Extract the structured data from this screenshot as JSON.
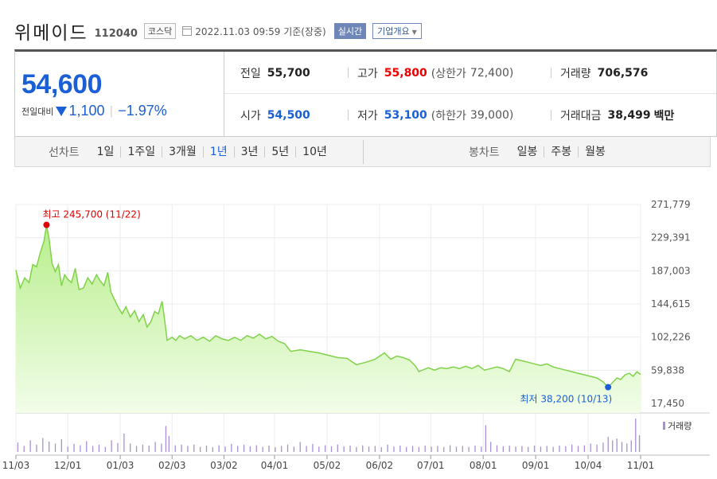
{
  "header": {
    "company_name": "위메이드",
    "stock_code": "112040",
    "market": "코스닥",
    "timestamp": "2022.11.03 09:59  기준(장중)",
    "realtime_label": "실시간",
    "overview_label": "기업개요"
  },
  "quote": {
    "current_price": "54,600",
    "change_label": "전일대비",
    "change_amount": "1,100",
    "change_percent": "−1.97%",
    "direction": "down",
    "prev_close_label": "전일",
    "prev_close": "55,700",
    "high_label": "고가",
    "high": "55,800",
    "upper_limit_label": "(상한가",
    "upper_limit": "72,400)",
    "volume_label": "거래량",
    "volume": "706,576",
    "open_label": "시가",
    "open": "54,500",
    "low_label": "저가",
    "low": "53,100",
    "lower_limit_label": "(하한가",
    "lower_limit": "39,000)",
    "amount_label": "거래대금",
    "amount": "38,499",
    "amount_unit": "백만"
  },
  "tabs": {
    "line_title": "선차트",
    "line": [
      "1일",
      "1주일",
      "3개월",
      "1년",
      "3년",
      "5년",
      "10년"
    ],
    "line_active": 3,
    "candle_title": "봉차트",
    "candle": [
      "일봉",
      "주봉",
      "월봉"
    ]
  },
  "colors": {
    "price_up": "#e00000",
    "price_down": "#1a5fd6",
    "line": "#7fd24a",
    "area_top": "#b8ee8c",
    "area_bottom": "#f2fde9",
    "volume": "#a98fd8"
  },
  "chart_data": {
    "type": "area",
    "ylim": [
      17450,
      271779
    ],
    "yticks": [
      "271,779",
      "229,391",
      "187,003",
      "144,615",
      "102,226",
      "59,838",
      "17,450"
    ],
    "x_labels": [
      "11/03",
      "12/01",
      "01/03",
      "02/03",
      "03/02",
      "04/01",
      "05/02",
      "06/02",
      "07/01",
      "08/01",
      "09/01",
      "10/04",
      "11/01"
    ],
    "x_label_positions": [
      0,
      0.083,
      0.167,
      0.25,
      0.333,
      0.414,
      0.498,
      0.582,
      0.664,
      0.748,
      0.832,
      0.916,
      1.0
    ],
    "high_annotation": {
      "label": "최고",
      "value": "245,700",
      "date": "(11/22)",
      "price": 245700,
      "t": 0.049
    },
    "low_annotation": {
      "label": "최저",
      "value": "38,200",
      "date": "(10/13)",
      "price": 38200,
      "t": 0.948
    },
    "volume_label": "거래량",
    "price_series": [
      [
        0.0,
        188000
      ],
      [
        0.007,
        165000
      ],
      [
        0.014,
        178000
      ],
      [
        0.021,
        172000
      ],
      [
        0.027,
        195000
      ],
      [
        0.033,
        192000
      ],
      [
        0.039,
        210000
      ],
      [
        0.045,
        225000
      ],
      [
        0.049,
        245700
      ],
      [
        0.053,
        228000
      ],
      [
        0.058,
        196000
      ],
      [
        0.063,
        186000
      ],
      [
        0.068,
        195000
      ],
      [
        0.073,
        168000
      ],
      [
        0.078,
        182000
      ],
      [
        0.083,
        176000
      ],
      [
        0.089,
        172000
      ],
      [
        0.095,
        190000
      ],
      [
        0.101,
        163000
      ],
      [
        0.108,
        165000
      ],
      [
        0.115,
        178000
      ],
      [
        0.122,
        170000
      ],
      [
        0.129,
        182000
      ],
      [
        0.135,
        174000
      ],
      [
        0.141,
        168000
      ],
      [
        0.147,
        185000
      ],
      [
        0.152,
        160000
      ],
      [
        0.158,
        150000
      ],
      [
        0.164,
        140000
      ],
      [
        0.17,
        132000
      ],
      [
        0.176,
        141000
      ],
      [
        0.183,
        128000
      ],
      [
        0.19,
        136000
      ],
      [
        0.197,
        122000
      ],
      [
        0.204,
        131000
      ],
      [
        0.21,
        115000
      ],
      [
        0.216,
        122000
      ],
      [
        0.222,
        135000
      ],
      [
        0.228,
        132000
      ],
      [
        0.234,
        148000
      ],
      [
        0.238,
        125000
      ],
      [
        0.242,
        98000
      ],
      [
        0.25,
        102000
      ],
      [
        0.256,
        98000
      ],
      [
        0.262,
        104000
      ],
      [
        0.27,
        100000
      ],
      [
        0.28,
        104000
      ],
      [
        0.29,
        98000
      ],
      [
        0.3,
        102000
      ],
      [
        0.31,
        97000
      ],
      [
        0.32,
        104000
      ],
      [
        0.33,
        100000
      ],
      [
        0.34,
        98000
      ],
      [
        0.35,
        102000
      ],
      [
        0.36,
        98000
      ],
      [
        0.37,
        104000
      ],
      [
        0.38,
        101000
      ],
      [
        0.39,
        106000
      ],
      [
        0.4,
        100000
      ],
      [
        0.41,
        103000
      ],
      [
        0.42,
        97000
      ],
      [
        0.43,
        94000
      ],
      [
        0.44,
        84000
      ],
      [
        0.455,
        86000
      ],
      [
        0.47,
        84000
      ],
      [
        0.485,
        82000
      ],
      [
        0.5,
        79000
      ],
      [
        0.515,
        76000
      ],
      [
        0.53,
        75000
      ],
      [
        0.545,
        67000
      ],
      [
        0.56,
        70000
      ],
      [
        0.575,
        74000
      ],
      [
        0.59,
        82000
      ],
      [
        0.6,
        74000
      ],
      [
        0.61,
        78000
      ],
      [
        0.62,
        76000
      ],
      [
        0.63,
        73000
      ],
      [
        0.64,
        65000
      ],
      [
        0.645,
        58000
      ],
      [
        0.66,
        63000
      ],
      [
        0.67,
        60000
      ],
      [
        0.68,
        63000
      ],
      [
        0.69,
        62000
      ],
      [
        0.7,
        64000
      ],
      [
        0.71,
        62000
      ],
      [
        0.72,
        65000
      ],
      [
        0.73,
        62000
      ],
      [
        0.74,
        66000
      ],
      [
        0.75,
        60000
      ],
      [
        0.76,
        62000
      ],
      [
        0.77,
        64000
      ],
      [
        0.78,
        62000
      ],
      [
        0.79,
        58000
      ],
      [
        0.8,
        74000
      ],
      [
        0.81,
        72000
      ],
      [
        0.82,
        70000
      ],
      [
        0.83,
        68000
      ],
      [
        0.84,
        66000
      ],
      [
        0.85,
        68000
      ],
      [
        0.86,
        64000
      ],
      [
        0.87,
        62000
      ],
      [
        0.88,
        60000
      ],
      [
        0.89,
        58000
      ],
      [
        0.9,
        56000
      ],
      [
        0.91,
        54000
      ],
      [
        0.92,
        52000
      ],
      [
        0.93,
        50000
      ],
      [
        0.94,
        45000
      ],
      [
        0.948,
        38200
      ],
      [
        0.955,
        44000
      ],
      [
        0.962,
        50000
      ],
      [
        0.968,
        48000
      ],
      [
        0.975,
        54000
      ],
      [
        0.982,
        56000
      ],
      [
        0.988,
        52000
      ],
      [
        0.994,
        58000
      ],
      [
        1.0,
        54600
      ]
    ],
    "volume_series": [
      [
        0.003,
        0.28
      ],
      [
        0.013,
        0.18
      ],
      [
        0.023,
        0.35
      ],
      [
        0.033,
        0.22
      ],
      [
        0.043,
        0.42
      ],
      [
        0.053,
        0.31
      ],
      [
        0.063,
        0.25
      ],
      [
        0.073,
        0.38
      ],
      [
        0.083,
        0.16
      ],
      [
        0.093,
        0.24
      ],
      [
        0.103,
        0.2
      ],
      [
        0.113,
        0.32
      ],
      [
        0.123,
        0.18
      ],
      [
        0.133,
        0.22
      ],
      [
        0.143,
        0.15
      ],
      [
        0.153,
        0.35
      ],
      [
        0.163,
        0.27
      ],
      [
        0.173,
        0.55
      ],
      [
        0.183,
        0.25
      ],
      [
        0.193,
        0.18
      ],
      [
        0.203,
        0.22
      ],
      [
        0.213,
        0.19
      ],
      [
        0.223,
        0.3
      ],
      [
        0.233,
        0.25
      ],
      [
        0.24,
        0.78
      ],
      [
        0.245,
        0.48
      ],
      [
        0.255,
        0.2
      ],
      [
        0.265,
        0.22
      ],
      [
        0.275,
        0.18
      ],
      [
        0.285,
        0.22
      ],
      [
        0.295,
        0.15
      ],
      [
        0.305,
        0.19
      ],
      [
        0.315,
        0.14
      ],
      [
        0.325,
        0.2
      ],
      [
        0.335,
        0.16
      ],
      [
        0.345,
        0.24
      ],
      [
        0.355,
        0.18
      ],
      [
        0.365,
        0.22
      ],
      [
        0.375,
        0.17
      ],
      [
        0.385,
        0.2
      ],
      [
        0.395,
        0.15
      ],
      [
        0.405,
        0.19
      ],
      [
        0.415,
        0.14
      ],
      [
        0.425,
        0.18
      ],
      [
        0.435,
        0.22
      ],
      [
        0.445,
        0.16
      ],
      [
        0.455,
        0.3
      ],
      [
        0.465,
        0.18
      ],
      [
        0.475,
        0.24
      ],
      [
        0.485,
        0.16
      ],
      [
        0.495,
        0.2
      ],
      [
        0.505,
        0.17
      ],
      [
        0.515,
        0.22
      ],
      [
        0.525,
        0.16
      ],
      [
        0.535,
        0.19
      ],
      [
        0.545,
        0.15
      ],
      [
        0.555,
        0.2
      ],
      [
        0.565,
        0.16
      ],
      [
        0.575,
        0.18
      ],
      [
        0.585,
        0.14
      ],
      [
        0.595,
        0.22
      ],
      [
        0.605,
        0.16
      ],
      [
        0.615,
        0.19
      ],
      [
        0.625,
        0.15
      ],
      [
        0.635,
        0.18
      ],
      [
        0.645,
        0.15
      ],
      [
        0.655,
        0.19
      ],
      [
        0.665,
        0.16
      ],
      [
        0.675,
        0.18
      ],
      [
        0.685,
        0.15
      ],
      [
        0.695,
        0.2
      ],
      [
        0.705,
        0.16
      ],
      [
        0.715,
        0.18
      ],
      [
        0.725,
        0.15
      ],
      [
        0.735,
        0.19
      ],
      [
        0.745,
        0.16
      ],
      [
        0.752,
        0.8
      ],
      [
        0.76,
        0.3
      ],
      [
        0.77,
        0.2
      ],
      [
        0.78,
        0.17
      ],
      [
        0.79,
        0.19
      ],
      [
        0.8,
        0.16
      ],
      [
        0.81,
        0.18
      ],
      [
        0.82,
        0.15
      ],
      [
        0.83,
        0.19
      ],
      [
        0.84,
        0.16
      ],
      [
        0.85,
        0.18
      ],
      [
        0.86,
        0.15
      ],
      [
        0.87,
        0.19
      ],
      [
        0.88,
        0.17
      ],
      [
        0.89,
        0.22
      ],
      [
        0.9,
        0.18
      ],
      [
        0.91,
        0.2
      ],
      [
        0.92,
        0.25
      ],
      [
        0.93,
        0.22
      ],
      [
        0.94,
        0.28
      ],
      [
        0.948,
        0.45
      ],
      [
        0.955,
        0.35
      ],
      [
        0.962,
        0.4
      ],
      [
        0.97,
        0.3
      ],
      [
        0.978,
        0.25
      ],
      [
        0.985,
        0.35
      ],
      [
        0.992,
        1.0
      ],
      [
        0.998,
        0.5
      ]
    ]
  }
}
